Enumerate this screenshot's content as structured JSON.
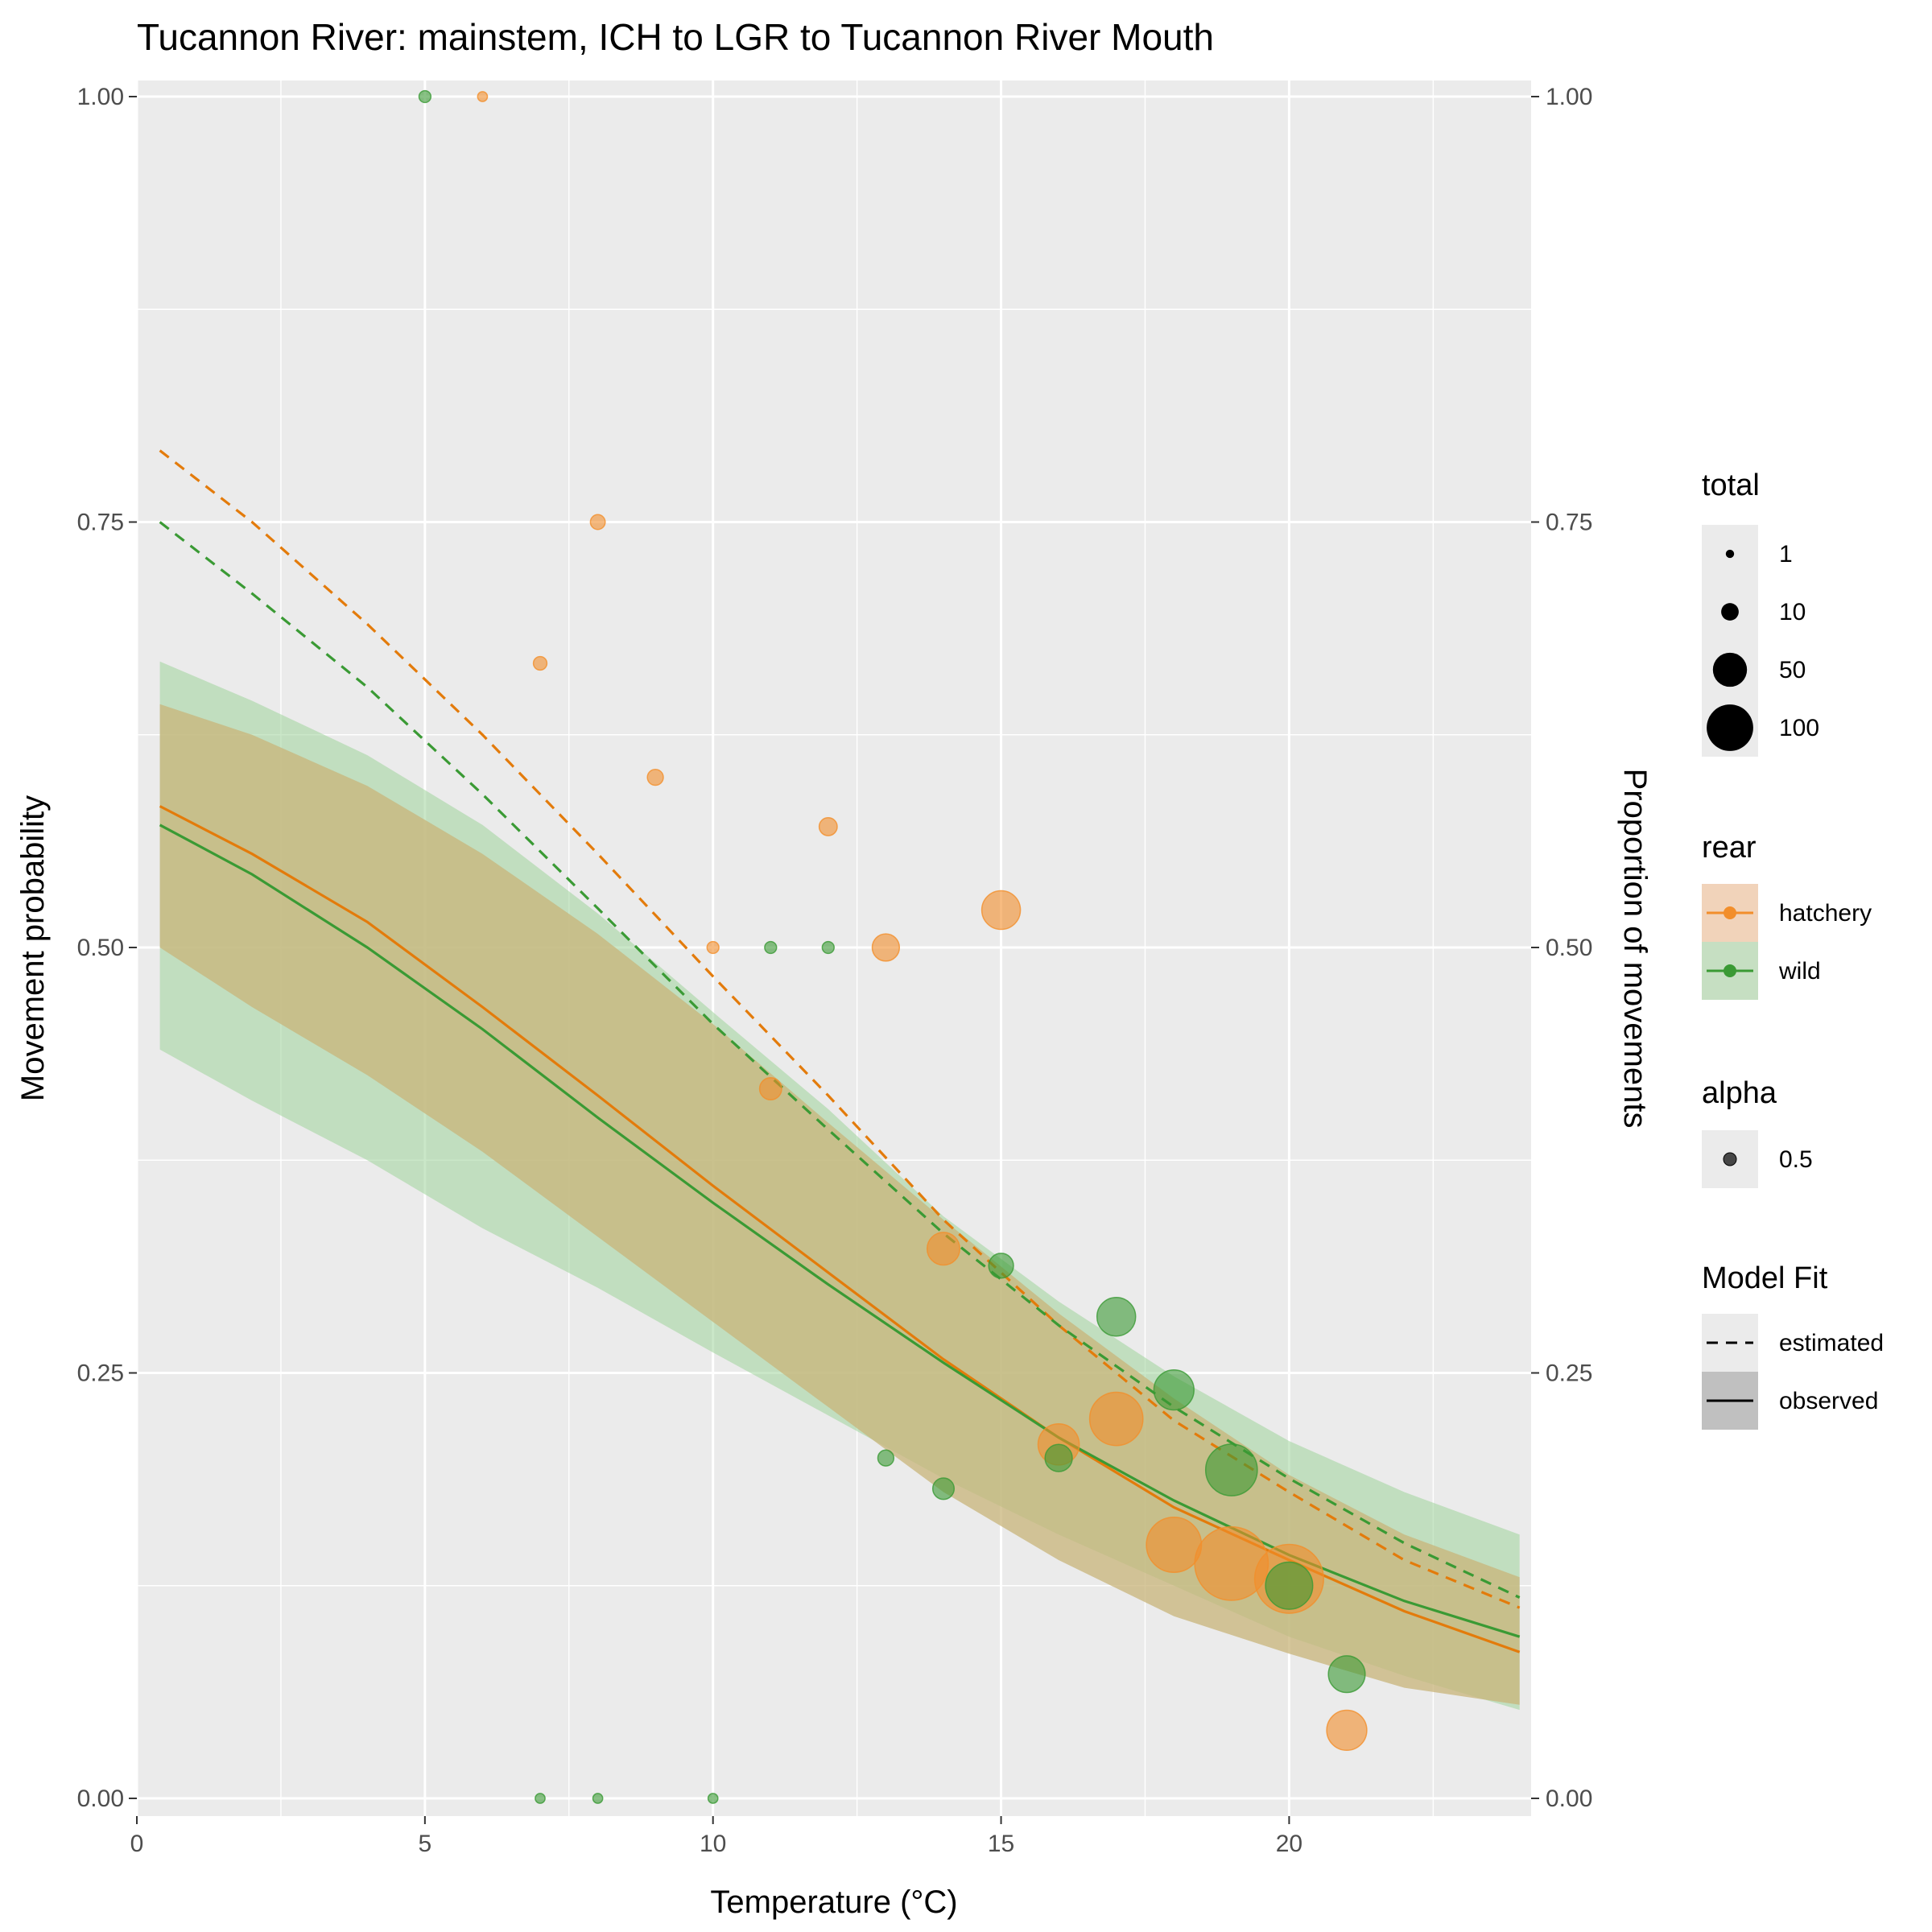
{
  "chart_data": {
    "type": "scatter",
    "title": "Tucannon River: mainstem, ICH to LGR to Tucannon River Mouth",
    "xlabel": "Temperature (°C)",
    "ylabel": "Movement probability",
    "ylabel_right": "Proportion of movements",
    "xlim": [
      0,
      24.2
    ],
    "ylim": [
      0,
      1
    ],
    "x_ticks": [
      "0",
      "5",
      "10",
      "15",
      "20"
    ],
    "y_ticks": [
      "0.00",
      "0.25",
      "0.50",
      "0.75",
      "1.00"
    ],
    "grid": true,
    "legend_position": "right",
    "colors": {
      "hatchery": "#F28E2B",
      "hatchery_line": "#E37B0B",
      "wild": "#3A9A34",
      "wild_ribbon": "#9FD39A",
      "hatchery_ribbon": "#C8B47A",
      "panel": "#EBEBEB"
    },
    "legend": {
      "total": {
        "title": "total",
        "items": [
          "1",
          "10",
          "50",
          "100"
        ]
      },
      "rear": {
        "title": "rear",
        "items": [
          "hatchery",
          "wild"
        ]
      },
      "alpha": {
        "title": "alpha",
        "items": [
          "0.5"
        ]
      },
      "model_fit": {
        "title": "Model Fit",
        "items": [
          "estimated",
          "observed"
        ]
      }
    },
    "series": [
      {
        "name": "hatchery",
        "points": [
          {
            "x": 6,
            "y": 1.0,
            "total": 1
          },
          {
            "x": 7,
            "y": 0.667,
            "total": 3
          },
          {
            "x": 8,
            "y": 0.75,
            "total": 4
          },
          {
            "x": 9,
            "y": 0.6,
            "total": 5
          },
          {
            "x": 10,
            "y": 0.5,
            "total": 2
          },
          {
            "x": 11,
            "y": 0.417,
            "total": 12
          },
          {
            "x": 12,
            "y": 0.571,
            "total": 7
          },
          {
            "x": 13,
            "y": 0.5,
            "total": 20
          },
          {
            "x": 14,
            "y": 0.323,
            "total": 31
          },
          {
            "x": 15,
            "y": 0.522,
            "total": 46
          },
          {
            "x": 16,
            "y": 0.208,
            "total": 53
          },
          {
            "x": 17,
            "y": 0.223,
            "total": 94
          },
          {
            "x": 18,
            "y": 0.149,
            "total": 101
          },
          {
            "x": 19,
            "y": 0.138,
            "total": 190
          },
          {
            "x": 20,
            "y": 0.129,
            "total": 165
          },
          {
            "x": 21,
            "y": 0.04,
            "total": 50
          }
        ],
        "observed_fit": {
          "x": [
            0.4,
            2,
            4,
            6,
            8,
            10,
            12,
            14,
            16,
            18,
            20,
            22,
            24
          ],
          "y": [
            0.583,
            0.555,
            0.515,
            0.465,
            0.413,
            0.36,
            0.309,
            0.258,
            0.212,
            0.171,
            0.14,
            0.11,
            0.086
          ]
        },
        "observed_ci": {
          "x": [
            0.4,
            2,
            4,
            6,
            8,
            10,
            12,
            14,
            16,
            18,
            20,
            22,
            24
          ],
          "lower": [
            0.5,
            0.465,
            0.425,
            0.38,
            0.33,
            0.28,
            0.23,
            0.18,
            0.14,
            0.107,
            0.085,
            0.065,
            0.055
          ],
          "upper": [
            0.643,
            0.625,
            0.595,
            0.555,
            0.508,
            0.455,
            0.397,
            0.34,
            0.285,
            0.235,
            0.19,
            0.155,
            0.13
          ]
        },
        "estimated_fit": {
          "x": [
            0.4,
            2,
            4,
            6,
            8,
            10,
            12,
            14,
            16,
            18,
            20,
            22,
            24
          ],
          "y": [
            0.792,
            0.75,
            0.69,
            0.625,
            0.555,
            0.483,
            0.413,
            0.34,
            0.278,
            0.222,
            0.18,
            0.14,
            0.112
          ]
        }
      },
      {
        "name": "wild",
        "points": [
          {
            "x": 5,
            "y": 1.0,
            "total": 2
          },
          {
            "x": 7,
            "y": 0.0,
            "total": 1
          },
          {
            "x": 8,
            "y": 0.0,
            "total": 1
          },
          {
            "x": 10,
            "y": 0.0,
            "total": 1
          },
          {
            "x": 11,
            "y": 0.5,
            "total": 2
          },
          {
            "x": 12,
            "y": 0.5,
            "total": 2
          },
          {
            "x": 13,
            "y": 0.2,
            "total": 5
          },
          {
            "x": 14,
            "y": 0.182,
            "total": 11
          },
          {
            "x": 15,
            "y": 0.313,
            "total": 16
          },
          {
            "x": 16,
            "y": 0.2,
            "total": 20
          },
          {
            "x": 17,
            "y": 0.283,
            "total": 46
          },
          {
            "x": 18,
            "y": 0.24,
            "total": 50
          },
          {
            "x": 19,
            "y": 0.193,
            "total": 88
          },
          {
            "x": 20,
            "y": 0.125,
            "total": 72
          },
          {
            "x": 21,
            "y": 0.073,
            "total": 41
          }
        ],
        "observed_fit": {
          "x": [
            0.4,
            2,
            4,
            6,
            8,
            10,
            12,
            14,
            16,
            18,
            20,
            22,
            24
          ],
          "y": [
            0.572,
            0.543,
            0.5,
            0.452,
            0.4,
            0.35,
            0.302,
            0.256,
            0.212,
            0.175,
            0.143,
            0.116,
            0.095
          ]
        },
        "observed_ci": {
          "x": [
            0.4,
            2,
            4,
            6,
            8,
            10,
            12,
            14,
            16,
            18,
            20,
            22,
            24
          ],
          "lower": [
            0.44,
            0.41,
            0.375,
            0.335,
            0.3,
            0.262,
            0.225,
            0.188,
            0.155,
            0.125,
            0.095,
            0.072,
            0.052
          ],
          "upper": [
            0.668,
            0.645,
            0.613,
            0.572,
            0.52,
            0.462,
            0.405,
            0.342,
            0.292,
            0.248,
            0.21,
            0.18,
            0.155
          ]
        },
        "estimated_fit": {
          "x": [
            0.4,
            2,
            4,
            6,
            8,
            10,
            12,
            14,
            16,
            18,
            20,
            22,
            24
          ],
          "y": [
            0.75,
            0.708,
            0.653,
            0.59,
            0.523,
            0.455,
            0.393,
            0.332,
            0.278,
            0.23,
            0.188,
            0.15,
            0.118
          ]
        }
      }
    ]
  }
}
